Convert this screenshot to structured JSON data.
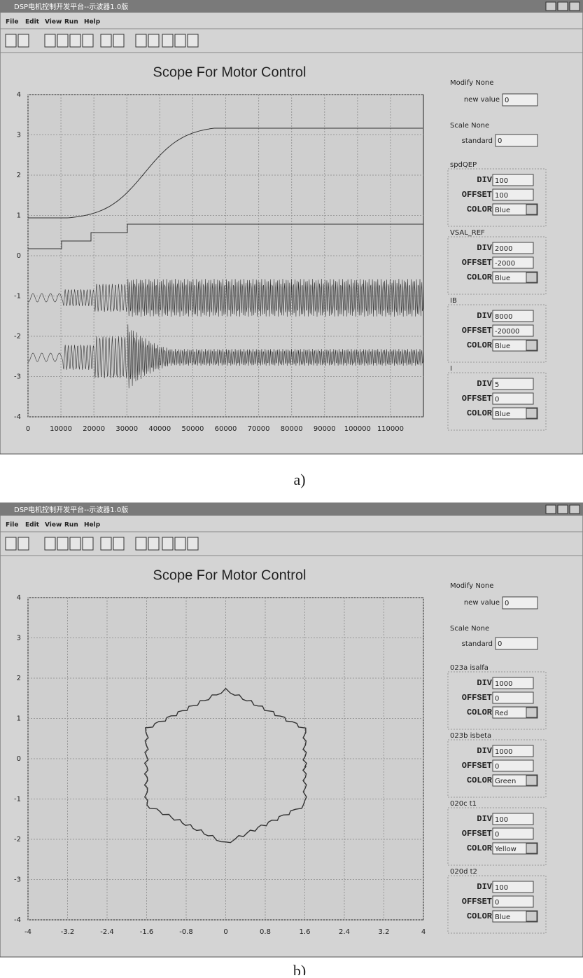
{
  "windows": [
    {
      "title": "DSP电机控制开发平台--示波器1.0版",
      "menu": [
        "File",
        "Edit",
        "View",
        "Run",
        "Help"
      ],
      "scope": {
        "title": "Scope For Motor Control",
        "xlim": [
          0,
          120000
        ],
        "xticks": [
          0,
          10000,
          20000,
          30000,
          40000,
          50000,
          60000,
          70000,
          80000,
          90000,
          100000,
          110000
        ],
        "ylim": [
          -4,
          4
        ],
        "yticks": [
          -4,
          -3,
          -2,
          -1,
          0,
          1,
          2,
          3,
          4
        ],
        "grid": true
      },
      "panel": {
        "modify": "Modify None",
        "new_value_label": "new value",
        "new_value": "0",
        "scale": "Scale None",
        "standard_label": "standard",
        "standard": "0",
        "field_labels": {
          "div": "DIV",
          "offset": "OFFSET",
          "color": "COLOR"
        },
        "groups": [
          {
            "name": "spdQEP",
            "div": "100",
            "offset": "100",
            "color": "Blue"
          },
          {
            "name": "VSAL_REF",
            "div": "2000",
            "offset": "-2000",
            "color": "Blue"
          },
          {
            "name": "IB",
            "div": "8000",
            "offset": "-20000",
            "color": "Blue"
          },
          {
            "name": "I",
            "div": "5",
            "offset": "0",
            "color": "Blue"
          }
        ]
      },
      "caption": "a)"
    },
    {
      "title": "DSP电机控制开发平台--示波器1.0版",
      "menu": [
        "File",
        "Edit",
        "View",
        "Run",
        "Help"
      ],
      "scope": {
        "title": "Scope For Motor Control",
        "xlim": [
          -4,
          4
        ],
        "xticks": [
          -4,
          -3.2,
          -2.4,
          -1.6,
          -0.8,
          0,
          0.8,
          1.6,
          2.4,
          3.2,
          4
        ],
        "ylim": [
          -4,
          4
        ],
        "yticks": [
          -4,
          -3,
          -2,
          -1,
          0,
          1,
          2,
          3,
          4
        ],
        "grid": true
      },
      "panel": {
        "modify": "Modify None",
        "new_value_label": "new value",
        "new_value": "0",
        "scale": "Scale None",
        "standard_label": "standard",
        "standard": "0",
        "field_labels": {
          "div": "DIV",
          "offset": "OFFSET",
          "color": "COLOR"
        },
        "groups": [
          {
            "name": "023a isalfa",
            "div": "1000",
            "offset": "0",
            "color": "Red"
          },
          {
            "name": "023b isbeta",
            "div": "1000",
            "offset": "0",
            "color": "Green"
          },
          {
            "name": "020c t1",
            "div": "100",
            "offset": "0",
            "color": "Yellow"
          },
          {
            "name": "020d t2",
            "div": "100",
            "offset": "0",
            "color": "Blue"
          }
        ]
      },
      "caption": "b)"
    }
  ]
}
